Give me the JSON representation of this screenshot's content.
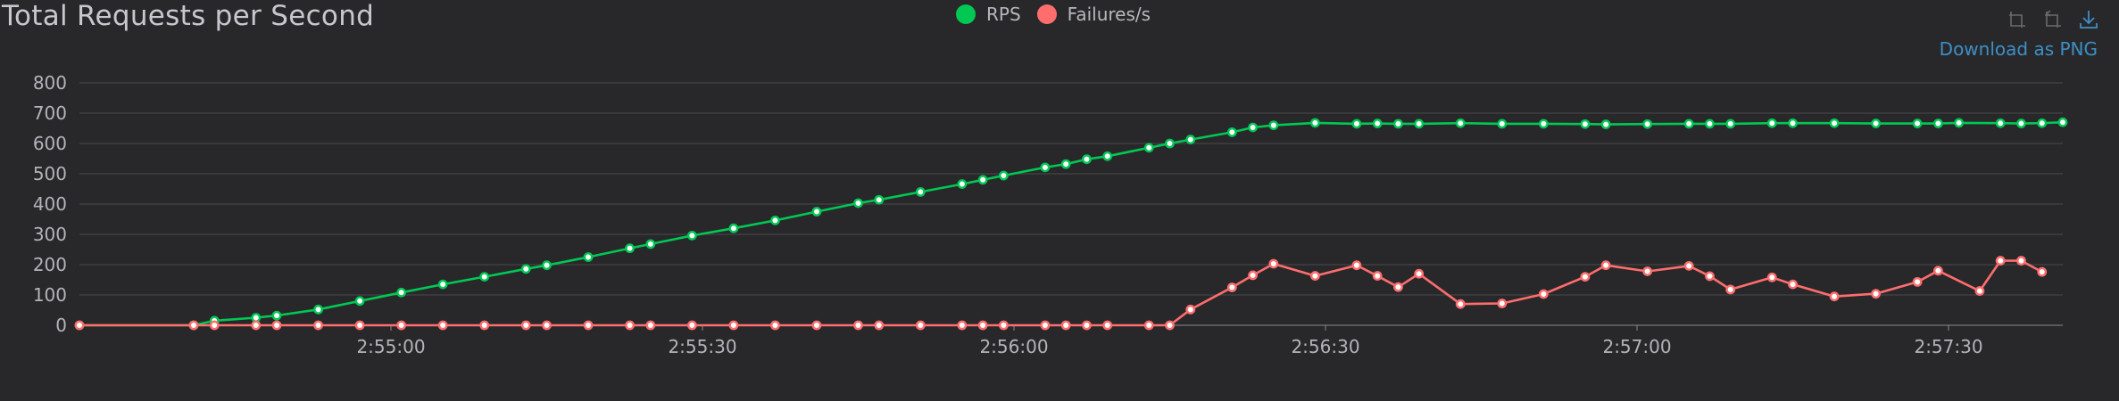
{
  "title": "Total Requests per Second",
  "legend": [
    {
      "label": "RPS",
      "color": "#00c853"
    },
    {
      "label": "Failures/s",
      "color": "#ff6d6d"
    }
  ],
  "toolbox": {
    "icons": [
      "zoom-select-icon",
      "zoom-reset-icon",
      "download-icon"
    ],
    "download_label": "Download as PNG",
    "accent": "#3d8fc6"
  },
  "chart_data": {
    "type": "line",
    "xlabel": "",
    "ylabel": "",
    "ylim": [
      0,
      800
    ],
    "yticks": [
      "0",
      "100",
      "200",
      "300",
      "400",
      "500",
      "600",
      "700",
      "800"
    ],
    "xticks": [
      {
        "t": 30,
        "label": "2:55:00"
      },
      {
        "t": 60,
        "label": "2:55:30"
      },
      {
        "t": 90,
        "label": "2:56:00"
      },
      {
        "t": 120,
        "label": "2:56:30"
      },
      {
        "t": 150,
        "label": "2:57:00"
      },
      {
        "t": 180,
        "label": "2:57:30"
      }
    ],
    "grid": true,
    "legend_position": "top-center",
    "x_time_start": "2:54:30",
    "series": [
      {
        "name": "RPS",
        "color": "#00c853",
        "points": [
          [
            0,
            0
          ],
          [
            11,
            0
          ],
          [
            13,
            15
          ],
          [
            17,
            25
          ],
          [
            19,
            32
          ],
          [
            23,
            52
          ],
          [
            27,
            80
          ],
          [
            31,
            108
          ],
          [
            35,
            135
          ],
          [
            39,
            160
          ],
          [
            43,
            186
          ],
          [
            45,
            198
          ],
          [
            49,
            225
          ],
          [
            53,
            254
          ],
          [
            55,
            268
          ],
          [
            59,
            296
          ],
          [
            63,
            320
          ],
          [
            67,
            346
          ],
          [
            71,
            375
          ],
          [
            75,
            403
          ],
          [
            77,
            414
          ],
          [
            81,
            440
          ],
          [
            85,
            466
          ],
          [
            87,
            480
          ],
          [
            89,
            494
          ],
          [
            93,
            521
          ],
          [
            95,
            532
          ],
          [
            97,
            548
          ],
          [
            99,
            558
          ],
          [
            103,
            586
          ],
          [
            105,
            600
          ],
          [
            107,
            613
          ],
          [
            111,
            637
          ],
          [
            113,
            653
          ],
          [
            115,
            660
          ],
          [
            119,
            668
          ],
          [
            123,
            665
          ],
          [
            125,
            666
          ],
          [
            127,
            665
          ],
          [
            129,
            665
          ],
          [
            133,
            667
          ],
          [
            137,
            665
          ],
          [
            141,
            665
          ],
          [
            145,
            664
          ],
          [
            147,
            663
          ],
          [
            151,
            664
          ],
          [
            155,
            665
          ],
          [
            157,
            665
          ],
          [
            159,
            665
          ],
          [
            163,
            667
          ],
          [
            165,
            667
          ],
          [
            169,
            667
          ],
          [
            173,
            666
          ],
          [
            177,
            666
          ],
          [
            179,
            666
          ],
          [
            181,
            668
          ],
          [
            185,
            667
          ],
          [
            187,
            666
          ],
          [
            189,
            667
          ],
          [
            191,
            670
          ]
        ]
      },
      {
        "name": "Failures/s",
        "color": "#ff6d6d",
        "points": [
          [
            0,
            0
          ],
          [
            11,
            0
          ],
          [
            13,
            0
          ],
          [
            17,
            0
          ],
          [
            19,
            0
          ],
          [
            23,
            0
          ],
          [
            27,
            0
          ],
          [
            31,
            0
          ],
          [
            35,
            0
          ],
          [
            39,
            0
          ],
          [
            43,
            0
          ],
          [
            45,
            0
          ],
          [
            49,
            0
          ],
          [
            53,
            0
          ],
          [
            55,
            0
          ],
          [
            59,
            0
          ],
          [
            63,
            0
          ],
          [
            67,
            0
          ],
          [
            71,
            0
          ],
          [
            75,
            0
          ],
          [
            77,
            0
          ],
          [
            81,
            0
          ],
          [
            85,
            0
          ],
          [
            87,
            0
          ],
          [
            89,
            0
          ],
          [
            93,
            0
          ],
          [
            95,
            0
          ],
          [
            97,
            0
          ],
          [
            99,
            0
          ],
          [
            103,
            0
          ],
          [
            105,
            0
          ],
          [
            107,
            52
          ],
          [
            111,
            125
          ],
          [
            113,
            165
          ],
          [
            115,
            203
          ],
          [
            119,
            163
          ],
          [
            123,
            198
          ],
          [
            125,
            163
          ],
          [
            127,
            126
          ],
          [
            129,
            170
          ],
          [
            133,
            70
          ],
          [
            137,
            72
          ],
          [
            141,
            103
          ],
          [
            145,
            160
          ],
          [
            147,
            198
          ],
          [
            151,
            178
          ],
          [
            155,
            196
          ],
          [
            157,
            162
          ],
          [
            159,
            118
          ],
          [
            163,
            158
          ],
          [
            165,
            135
          ],
          [
            169,
            95
          ],
          [
            173,
            104
          ],
          [
            177,
            143
          ],
          [
            179,
            180
          ],
          [
            183,
            113
          ],
          [
            185,
            213
          ],
          [
            187,
            213
          ],
          [
            189,
            176
          ]
        ]
      }
    ]
  }
}
